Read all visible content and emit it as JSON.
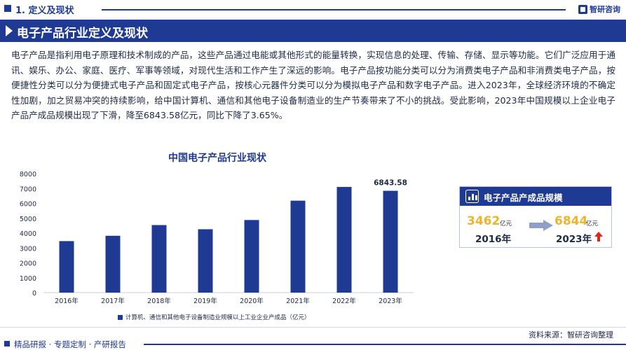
{
  "header": {
    "section": "1. 定义及现状",
    "brand": "智研咨询"
  },
  "title": "电子产品行业定义及现状",
  "intro": "电子产品是指利用电子原理和技术制成的产品，这些产品通过电能或其他形式的能量转换，实现信息的处理、传输、存储、显示等功能。它们广泛应用于通讯、娱乐、办公、家庭、医疗、军事等领域，对现代生活和工作产生了深远的影响。电子产品按功能分类可以分为消费类电子产品和非消费类电子产品，按便捷性分类可以分为便捷式电子产品和固定式电子产品，按核心元器件分类可以分为模拟电子产品和数字电子产品。进入2023年，全球经济环境的不确定性加剧，加之贸易冲突的持续影响，给中国计算机、通信和其他电子设备制造业的生产节奏带来了不小的挑战。受此影响，2023年中国规模以上企业电子产品产成品规模出现了下滑，降至6843.58亿元，同比下降了3.65%。",
  "chart_data": {
    "type": "bar",
    "title": "中国电子产品行业现状",
    "categories": [
      "2016年",
      "2017年",
      "2018年",
      "2019年",
      "2020年",
      "2021年",
      "2022年",
      "2023年"
    ],
    "series": [
      {
        "name": "计算机、通信和其他电子设备制造业规模以上工业企业产成品（亿元）",
        "values": [
          3462,
          3820,
          4540,
          4260,
          4880,
          6180,
          7103,
          6843.58
        ]
      }
    ],
    "data_labels": [
      {
        "index": 7,
        "text": "6843.58"
      }
    ],
    "yticks": [
      "0",
      "1000",
      "2000",
      "3000",
      "4000",
      "5000",
      "6000",
      "7000",
      "8000"
    ],
    "ylim": [
      0,
      8000
    ],
    "grid": false,
    "legend": "bottom",
    "bar_color": "#1f3a93"
  },
  "card": {
    "title": "电子产品产成品规模",
    "from": {
      "value": "3462",
      "unit": "亿元",
      "year": "2016年"
    },
    "to": {
      "value": "6844",
      "unit": "亿元",
      "year": "2023年"
    }
  },
  "footer": {
    "source": "资料来源：智研咨询整理",
    "tagline": "精品研报 · 专题定制 · 产研报告"
  },
  "colors": {
    "primary": "#1f3a93",
    "accent": "#f0b429",
    "up": "#e0241b"
  }
}
